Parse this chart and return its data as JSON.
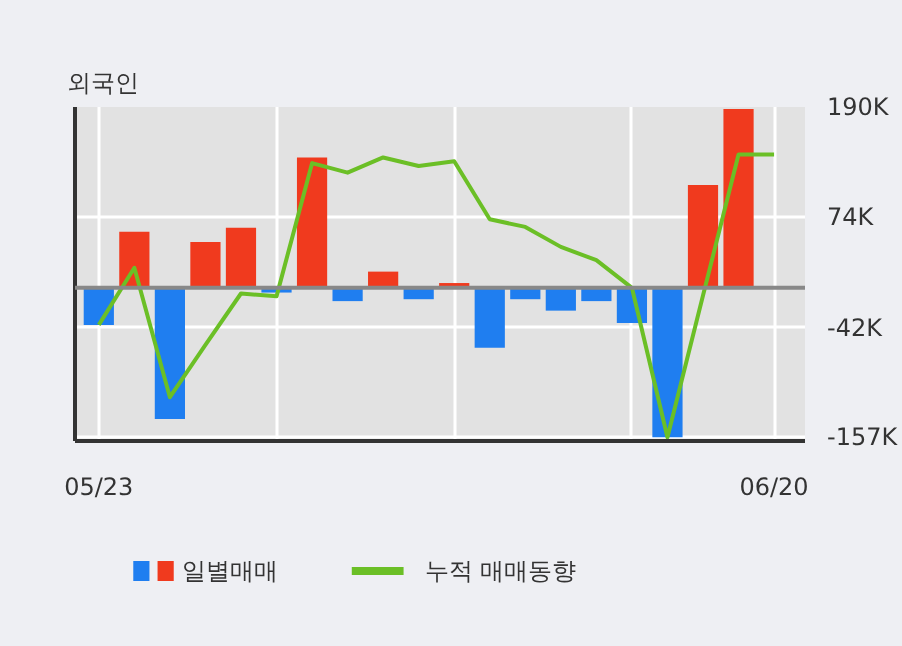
{
  "chart_data": {
    "type": "bar",
    "title": "외국인",
    "categories": [
      "05/23",
      null,
      null,
      null,
      null,
      null,
      null,
      null,
      null,
      null,
      null,
      null,
      null,
      null,
      null,
      null,
      null,
      null,
      null,
      "06/20"
    ],
    "series": [
      {
        "name": "일별매매",
        "values": [
          -39,
          59,
          -138,
          48,
          63,
          -5,
          137,
          -14,
          17,
          -12,
          5,
          -63,
          -12,
          -24,
          -14,
          -37,
          -157,
          108,
          188,
          null
        ],
        "colors": [
          "#1f7ef0",
          "#f03a1e",
          "#1f7ef0",
          "#f03a1e",
          "#f03a1e",
          "#1f7ef0",
          "#f03a1e",
          "#1f7ef0",
          "#f03a1e",
          "#1f7ef0",
          "#f03a1e",
          "#1f7ef0",
          "#1f7ef0",
          "#1f7ef0",
          "#1f7ef0",
          "#1f7ef0",
          "#1f7ef0",
          "#f03a1e",
          "#f03a1e",
          "#f03a1e"
        ]
      },
      {
        "name": "누적 매매동향",
        "type": "line",
        "color": "#6bbf26",
        "values": [
          -39,
          21,
          -115,
          -60,
          -6,
          -9,
          131,
          121,
          137,
          128,
          133,
          72,
          64,
          43,
          29,
          0,
          -157,
          -8,
          140,
          140
        ]
      }
    ],
    "ylim": [
      -161,
      190
    ],
    "yticks": [
      {
        "value": 190,
        "label": "190K"
      },
      {
        "value": 74,
        "label": "74K"
      },
      {
        "value": -42,
        "label": "-42K"
      },
      {
        "value": -157,
        "label": "-157K"
      }
    ],
    "ref_lines": [
      {
        "axis": "y",
        "value": 0,
        "color": "#888888"
      }
    ],
    "grid": true,
    "legend": "bottom"
  }
}
